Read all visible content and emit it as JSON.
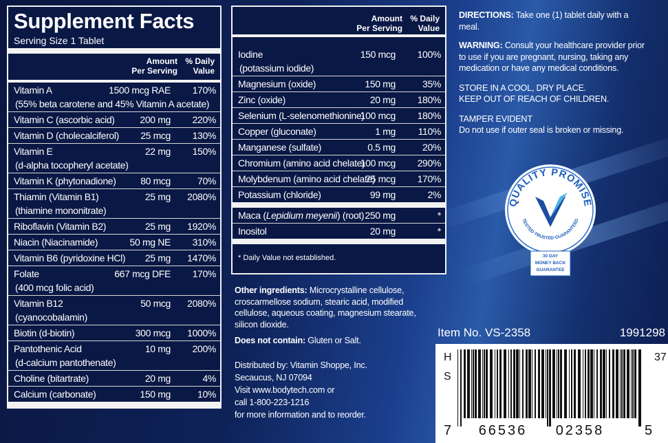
{
  "facts": {
    "title": "Supplement Facts",
    "serving": "Serving Size 1 Tablet",
    "header_amount": [
      "Amount",
      "Per Serving"
    ],
    "header_dv": [
      "% Daily",
      "Value"
    ],
    "groups": [
      [
        {
          "name": "Vitamin A",
          "amount": "1500 mcg RAE",
          "dv": "170%",
          "note": "(55% beta carotene and 45% Vitamin A acetate)"
        },
        {
          "name": "Vitamin C (ascorbic acid)",
          "amount": "200 mg",
          "dv": "220%"
        },
        {
          "name": "Vitamin D (cholecalciferol)",
          "amount": "25 mcg",
          "dv": "130%"
        },
        {
          "name": "Vitamin E",
          "amount": "22 mg",
          "dv": "150%",
          "note": "(d-alpha tocopheryl acetate)"
        },
        {
          "name": "Vitamin K (phytonadione)",
          "amount": "80 mcg",
          "dv": "70%"
        },
        {
          "name": "Thiamin (Vitamin B1)",
          "amount": "25 mg",
          "dv": "2080%",
          "note": "(thiamine mononitrate)"
        },
        {
          "name": "Riboflavin (Vitamin B2)",
          "amount": "25 mg",
          "dv": "1920%"
        },
        {
          "name": "Niacin (Niacinamide)",
          "amount": "50 mg NE",
          "dv": "310%"
        },
        {
          "name": "Vitamin B6 (pyridoxine HCl)",
          "amount": "25 mg",
          "dv": "1470%"
        },
        {
          "name": "Folate",
          "amount": "667 mcg DFE",
          "dv": "170%",
          "note": "(400 mcg folic acid)"
        },
        {
          "name": "Vitamin B12",
          "amount": "50 mcg",
          "dv": "2080%",
          "note": "(cyanocobalamin)"
        },
        {
          "name": "Biotin (d-biotin)",
          "amount": "300 mcg",
          "dv": "1000%"
        },
        {
          "name": "Pantothenic Acid",
          "amount": "10 mg",
          "dv": "200%",
          "note": "(d-calcium pantothenate)"
        },
        {
          "name": "Choline (bitartrate)",
          "amount": "20 mg",
          "dv": "4%"
        },
        {
          "name": "Calcium (carbonate)",
          "amount": "150 mg",
          "dv": "10%"
        }
      ]
    ]
  },
  "facts2": {
    "header_amount": [
      "Amount",
      "Per Serving"
    ],
    "header_dv": [
      "% Daily",
      "Value"
    ],
    "groups": [
      [
        {
          "name": "Iodine",
          "amount": "150 mcg",
          "dv": "100%",
          "note": "(potassium iodide)"
        },
        {
          "name": "Magnesium (oxide)",
          "amount": "150 mg",
          "dv": "35%"
        },
        {
          "name": "Zinc (oxide)",
          "amount": "20 mg",
          "dv": "180%"
        },
        {
          "name": "Selenium (L-selenomethionine)",
          "amount": "100 mcg",
          "dv": "180%"
        },
        {
          "name": "Copper (gluconate)",
          "amount": "1 mg",
          "dv": "110%"
        },
        {
          "name": "Manganese (sulfate)",
          "amount": "0.5 mg",
          "dv": "20%"
        },
        {
          "name": "Chromium (amino acid chelate)",
          "amount": "100 mcg",
          "dv": "290%"
        },
        {
          "name": "Molybdenum (amino acid chelate)",
          "amount": "75 mcg",
          "dv": "170%"
        },
        {
          "name": "Potassium (chloride)",
          "amount": "99 mg",
          "dv": "2%"
        }
      ],
      [
        {
          "name_parts": [
            "Maca (",
            "Lepidium meyenii",
            ") (root)"
          ],
          "amount": "250 mg",
          "dv": "*"
        },
        {
          "name": "Inositol",
          "amount": "20 mg",
          "dv": "*"
        }
      ]
    ],
    "footnote": "* Daily Value not established."
  },
  "ingredients": {
    "other_label": "Other ingredients:",
    "other_text": "Microcrystalline cellulose, croscarmellose sodium, stearic acid, modified cellulose, aqueous coating, magnesium stearate, silicon dioxide.",
    "not_contain_label": "Does not contain:",
    "not_contain_text": "Gluten or Salt."
  },
  "distributor": [
    "Distributed by: Vitamin Shoppe, Inc.",
    "Secaucus, NJ 07094",
    "Visit www.bodytech.com or",
    "call 1-800-223-1216",
    "for more information and to reorder."
  ],
  "right": {
    "directions_label": "DIRECTIONS:",
    "directions_text": "Take one (1) tablet daily with a meal.",
    "warning_label": "WARNING:",
    "warning_text": "Consult your healthcare provider prior to use if you are pregnant, nursing, taking any medication or have any medical conditions.",
    "store": [
      "STORE IN A COOL, DRY PLACE.",
      "KEEP OUT OF REACH OF CHILDREN."
    ],
    "tamper": [
      "TAMPER EVIDENT",
      "Do not use if outer seal is broken or missing."
    ]
  },
  "badge": {
    "title": "QUALITY PROMISE",
    "subtitle": "TESTED·TRUSTED·GUARANTEED",
    "guarantee": [
      "30 DAY",
      "MONEY BACK",
      "GUARANTEE"
    ]
  },
  "barcode": {
    "item": "Item No. VS-2358",
    "code": "1991298",
    "left": [
      "H",
      "S"
    ],
    "right": "37",
    "digits": [
      "7",
      "66536",
      "02358",
      "5"
    ]
  }
}
